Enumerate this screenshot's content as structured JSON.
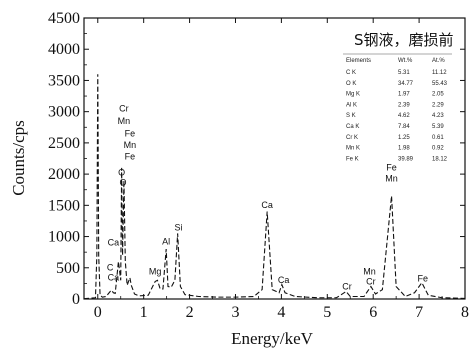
{
  "chart_data": {
    "type": "line",
    "title": "",
    "xlabel": "Energy/keV",
    "ylabel": "Counts/cps",
    "xlim": [
      -0.3,
      8
    ],
    "ylim": [
      0,
      4500
    ],
    "xticks": [
      0,
      1,
      2,
      3,
      4,
      5,
      6,
      7,
      8
    ],
    "yticks": [
      0,
      500,
      1000,
      1500,
      2000,
      2500,
      3000,
      3500,
      4000,
      4500
    ],
    "grid": false,
    "line_style": "dashed",
    "series": [
      {
        "points": [
          [
            -0.3,
            5
          ],
          [
            -0.05,
            20
          ],
          [
            -0.02,
            700
          ],
          [
            0.0,
            3600
          ],
          [
            0.02,
            700
          ],
          [
            0.05,
            60
          ],
          [
            0.1,
            30
          ],
          [
            0.18,
            40
          ],
          [
            0.27,
            120
          ],
          [
            0.3,
            140
          ],
          [
            0.34,
            100
          ],
          [
            0.38,
            90
          ],
          [
            0.45,
            600
          ],
          [
            0.5,
            300
          ],
          [
            0.52,
            2100
          ],
          [
            0.54,
            700
          ],
          [
            0.57,
            1900
          ],
          [
            0.6,
            600
          ],
          [
            0.64,
            220
          ],
          [
            0.7,
            340
          ],
          [
            0.73,
            220
          ],
          [
            0.8,
            80
          ],
          [
            0.9,
            50
          ],
          [
            1.1,
            60
          ],
          [
            1.25,
            280
          ],
          [
            1.3,
            300
          ],
          [
            1.36,
            160
          ],
          [
            1.42,
            160
          ],
          [
            1.49,
            800
          ],
          [
            1.53,
            200
          ],
          [
            1.6,
            190
          ],
          [
            1.68,
            300
          ],
          [
            1.74,
            1050
          ],
          [
            1.8,
            200
          ],
          [
            1.9,
            70
          ],
          [
            2.2,
            40
          ],
          [
            2.6,
            30
          ],
          [
            3.0,
            30
          ],
          [
            3.4,
            40
          ],
          [
            3.58,
            150
          ],
          [
            3.69,
            1400
          ],
          [
            3.8,
            150
          ],
          [
            3.95,
            100
          ],
          [
            4.01,
            230
          ],
          [
            4.08,
            100
          ],
          [
            4.3,
            40
          ],
          [
            4.8,
            20
          ],
          [
            5.2,
            20
          ],
          [
            5.41,
            120
          ],
          [
            5.5,
            40
          ],
          [
            5.8,
            40
          ],
          [
            5.95,
            200
          ],
          [
            6.05,
            80
          ],
          [
            6.2,
            150
          ],
          [
            6.4,
            1650
          ],
          [
            6.5,
            200
          ],
          [
            6.7,
            40
          ],
          [
            6.9,
            100
          ],
          [
            7.06,
            260
          ],
          [
            7.2,
            60
          ],
          [
            7.5,
            20
          ],
          [
            8.0,
            10
          ]
        ]
      }
    ],
    "peak_labels": [
      {
        "text": "Cr",
        "x": 0.57,
        "y": 3000
      },
      {
        "text": "Mn",
        "x": 0.57,
        "y": 2800
      },
      {
        "text": "Fe",
        "x": 0.7,
        "y": 2600
      },
      {
        "text": "Mn",
        "x": 0.7,
        "y": 2420
      },
      {
        "text": "Fe",
        "x": 0.7,
        "y": 2230
      },
      {
        "text": "O",
        "x": 0.52,
        "y": 1980
      },
      {
        "text": "O",
        "x": 0.55,
        "y": 1820
      },
      {
        "text": "Ca",
        "x": 0.34,
        "y": 860
      },
      {
        "text": "C",
        "x": 0.27,
        "y": 460
      },
      {
        "text": "Ca",
        "x": 0.34,
        "y": 300
      },
      {
        "text": "Mg",
        "x": 1.25,
        "y": 390
      },
      {
        "text": "Al",
        "x": 1.49,
        "y": 870
      },
      {
        "text": "Si",
        "x": 1.76,
        "y": 1100
      },
      {
        "text": "Ca",
        "x": 3.69,
        "y": 1460
      },
      {
        "text": "Ca",
        "x": 4.05,
        "y": 260
      },
      {
        "text": "Cr",
        "x": 5.43,
        "y": 150
      },
      {
        "text": "Mn",
        "x": 5.92,
        "y": 390
      },
      {
        "text": "Cr",
        "x": 5.95,
        "y": 230
      },
      {
        "text": "Fe",
        "x": 6.4,
        "y": 2060
      },
      {
        "text": "Mn",
        "x": 6.4,
        "y": 1880
      },
      {
        "text": "Fe",
        "x": 7.08,
        "y": 280
      }
    ]
  },
  "inset": {
    "title": "S钢液，磨损前",
    "columns": [
      "Elements",
      "Wt.%",
      "At.%"
    ],
    "rows": [
      [
        "C K",
        "5.31",
        "11.12"
      ],
      [
        "O K",
        "34.77",
        "55.43"
      ],
      [
        "Mg K",
        "1.97",
        "2.05"
      ],
      [
        "Al K",
        "2.39",
        "2.29"
      ],
      [
        "S K",
        "4.62",
        "4.23"
      ],
      [
        "Ca K",
        "7.84",
        "5.39"
      ],
      [
        "Cr K",
        "1.25",
        "0.61"
      ],
      [
        "Mn K",
        "1.98",
        "0.92"
      ],
      [
        "Fe K",
        "39.89",
        "18.12"
      ]
    ]
  }
}
